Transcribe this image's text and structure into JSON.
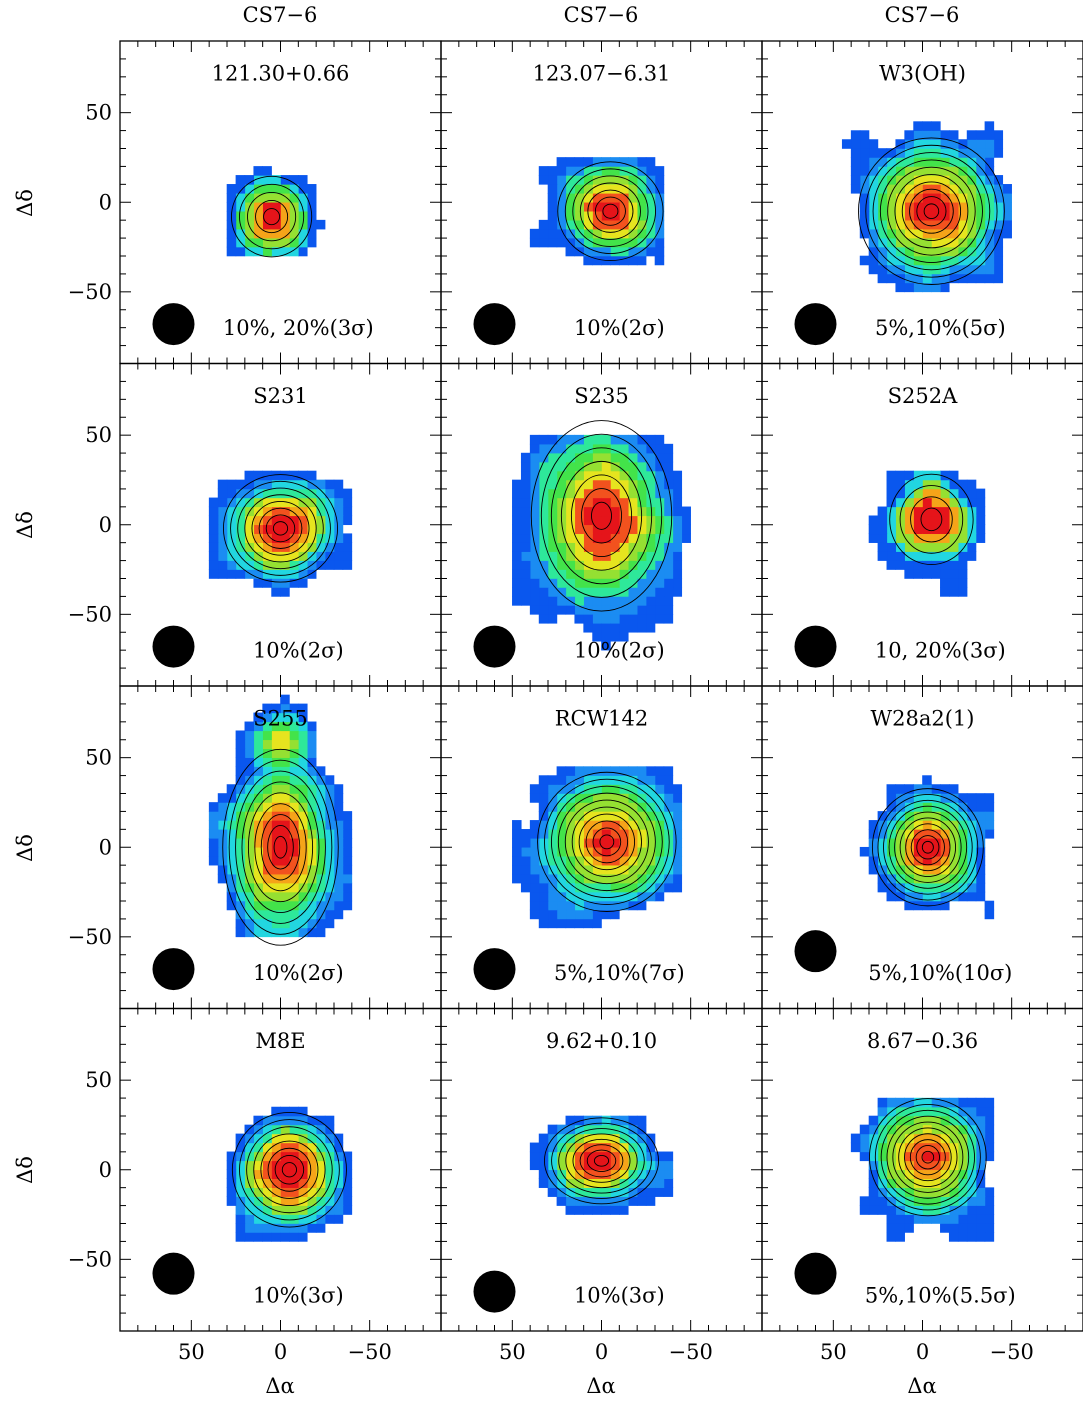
{
  "figure": {
    "column_headers": [
      "CS7−6",
      "CS7−6",
      "CS7−6"
    ],
    "xlabel": "Δα",
    "ylabel": "Δδ",
    "colors": {
      "background": "#ffffff",
      "frame": "#000000",
      "contour_line": "#000000",
      "beam": "#000000",
      "colormap": [
        "#0a57ee",
        "#1b8cf2",
        "#22d6e0",
        "#2ee89a",
        "#43e34a",
        "#95e032",
        "#e6e41f",
        "#f5a419",
        "#f2521e",
        "#e5141a"
      ]
    }
  },
  "chart_data": [
    {
      "type": "contour",
      "source": "121.30+0.66",
      "contours": "10%, 20%(3σ)",
      "xlim": [
        90,
        -90
      ],
      "ylim": [
        -90,
        90
      ],
      "xticks": [
        50,
        0,
        -50
      ],
      "yticks": [
        50,
        0,
        -50
      ],
      "peak": [
        5,
        -8
      ],
      "extent": {
        "x": [
          -30,
          30
        ],
        "y": [
          -30,
          30
        ]
      },
      "levels": 5
    },
    {
      "type": "contour",
      "source": "123.07−6.31",
      "contours": "10%(2σ)",
      "xlim": [
        90,
        -90
      ],
      "ylim": [
        -90,
        90
      ],
      "xticks": [
        50,
        0,
        -50
      ],
      "yticks": [
        50,
        0,
        -50
      ],
      "peak": [
        -5,
        -5
      ],
      "extent": {
        "x": [
          -35,
          40
        ],
        "y": [
          -40,
          30
        ]
      },
      "levels": 7
    },
    {
      "type": "contour",
      "source": "W3(OH)",
      "contours": "5%,10%(5σ)",
      "xlim": [
        90,
        -90
      ],
      "ylim": [
        -90,
        90
      ],
      "xticks": [
        50,
        0,
        -50
      ],
      "yticks": [
        50,
        0,
        -50
      ],
      "peak": [
        -5,
        -5
      ],
      "extent": {
        "x": [
          -50,
          50
        ],
        "y": [
          -50,
          50
        ]
      },
      "levels": 10
    },
    {
      "type": "contour",
      "source": "S231",
      "contours": "10%(2σ)",
      "xlim": [
        90,
        -90
      ],
      "ylim": [
        -90,
        90
      ],
      "xticks": [
        50,
        0,
        -50
      ],
      "yticks": [
        50,
        0,
        -50
      ],
      "peak": [
        0,
        -2
      ],
      "extent": {
        "x": [
          -40,
          40
        ],
        "y": [
          -40,
          35
        ]
      },
      "levels": 8
    },
    {
      "type": "contour",
      "source": "S235",
      "contours": "10%(2σ)",
      "xlim": [
        90,
        -90
      ],
      "ylim": [
        -90,
        90
      ],
      "xticks": [
        50,
        0,
        -50
      ],
      "yticks": [
        50,
        0,
        -50
      ],
      "peak": [
        0,
        5
      ],
      "extent": {
        "x": [
          -50,
          50
        ],
        "y": [
          -85,
          50
        ]
      },
      "levels": 7
    },
    {
      "type": "contour",
      "source": "S252A",
      "contours": "10, 20%(3σ)",
      "xlim": [
        90,
        -90
      ],
      "ylim": [
        -90,
        90
      ],
      "xticks": [
        50,
        0,
        -50
      ],
      "yticks": [
        50,
        0,
        -50
      ],
      "peak": [
        -5,
        3
      ],
      "extent": {
        "x": [
          -35,
          30
        ],
        "y": [
          -40,
          30
        ]
      },
      "levels": 4
    },
    {
      "type": "contour",
      "source": "S255",
      "contours": "10%(2σ)",
      "xlim": [
        90,
        -90
      ],
      "ylim": [
        -90,
        90
      ],
      "xticks": [
        50,
        0,
        -50
      ],
      "yticks": [
        50,
        0,
        -50
      ],
      "peak": [
        0,
        0
      ],
      "peak2": [
        0,
        58
      ],
      "extent": {
        "x": [
          -40,
          40
        ],
        "y": [
          -50,
          85
        ]
      },
      "levels": 9
    },
    {
      "type": "contour",
      "source": "RCW142",
      "contours": "5%,10%(7σ)",
      "xlim": [
        90,
        -90
      ],
      "ylim": [
        -90,
        90
      ],
      "xticks": [
        50,
        0,
        -50
      ],
      "yticks": [
        50,
        0,
        -50
      ],
      "peak": [
        -3,
        3
      ],
      "extent": {
        "x": [
          -45,
          50
        ],
        "y": [
          -50,
          45
        ]
      },
      "levels": 10
    },
    {
      "type": "contour",
      "source": "W28a2(1)",
      "contours": "5%,10%(10σ)",
      "xlim": [
        90,
        -90
      ],
      "ylim": [
        -90,
        90
      ],
      "xticks": [
        50,
        0,
        -50
      ],
      "yticks": [
        50,
        0,
        -50
      ],
      "peak": [
        -3,
        0
      ],
      "extent": {
        "x": [
          -38,
          38
        ],
        "y": [
          -40,
          40
        ]
      },
      "levels": 10
    },
    {
      "type": "contour",
      "source": "M8E",
      "contours": "10%(3σ)",
      "xlim": [
        90,
        -90
      ],
      "ylim": [
        -90,
        90
      ],
      "xticks": [
        50,
        0,
        -50
      ],
      "yticks": [
        50,
        0,
        -50
      ],
      "peak": [
        -5,
        0
      ],
      "extent": {
        "x": [
          -40,
          40
        ],
        "y": [
          -40,
          40
        ]
      },
      "levels": 8
    },
    {
      "type": "contour",
      "source": "9.62+0.10",
      "contours": "10%(3σ)",
      "xlim": [
        90,
        -90
      ],
      "ylim": [
        -90,
        90
      ],
      "xticks": [
        50,
        0,
        -50
      ],
      "yticks": [
        50,
        0,
        -50
      ],
      "peak": [
        0,
        5
      ],
      "extent": {
        "x": [
          -40,
          40
        ],
        "y": [
          -30,
          30
        ]
      },
      "levels": 8
    },
    {
      "type": "contour",
      "source": "8.67−0.36",
      "contours": "5%,10%(5.5σ)",
      "xlim": [
        90,
        -90
      ],
      "ylim": [
        -90,
        90
      ],
      "xticks": [
        50,
        0,
        -50
      ],
      "yticks": [
        50,
        0,
        -50
      ],
      "peak": [
        -3,
        7
      ],
      "extent": {
        "x": [
          -40,
          40
        ],
        "y": [
          -40,
          40
        ]
      },
      "levels": 10
    }
  ]
}
